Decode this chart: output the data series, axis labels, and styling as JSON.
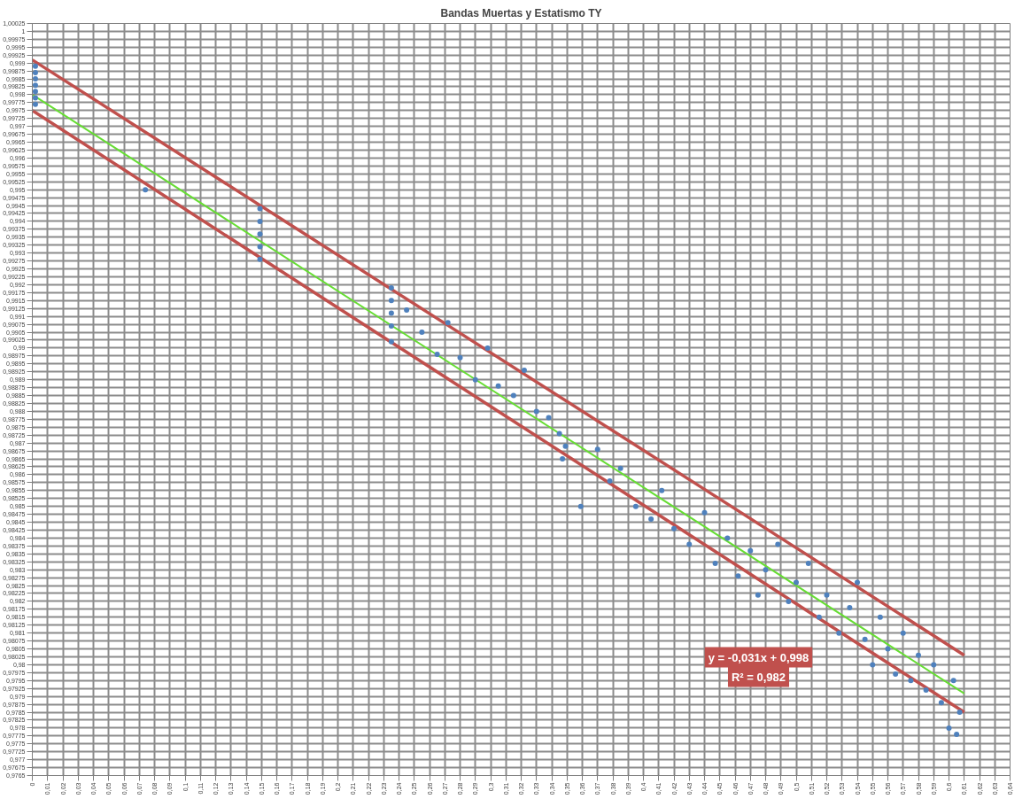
{
  "chart_data": {
    "type": "scatter",
    "title": "Bandas Muertas y Estatismo TY",
    "xlim": [
      0,
      0.64
    ],
    "ylim": [
      0.9765,
      1.00025
    ],
    "grid": true,
    "xticks": [
      0,
      {
        "value": 0.01,
        "label": "0,01"
      },
      {
        "value": 0.02,
        "label": "0,02"
      },
      {
        "value": 0.03,
        "label": "0,03"
      },
      {
        "value": 0.04,
        "label": "0,04"
      },
      {
        "value": 0.05,
        "label": "0,05"
      },
      {
        "value": 0.06,
        "label": "0,06"
      },
      {
        "value": 0.07,
        "label": "0,07"
      },
      {
        "value": 0.08,
        "label": "0,08"
      },
      {
        "value": 0.09,
        "label": "0,09"
      },
      {
        "value": 0.1,
        "label": "0,1"
      },
      {
        "value": 0.11,
        "label": "0,11"
      },
      {
        "value": 0.12,
        "label": "0,12"
      },
      {
        "value": 0.13,
        "label": "0,13"
      },
      {
        "value": 0.14,
        "label": "0,14"
      },
      {
        "value": 0.15,
        "label": "0,15"
      },
      {
        "value": 0.16,
        "label": "0,16"
      },
      {
        "value": 0.17,
        "label": "0,17"
      },
      {
        "value": 0.18,
        "label": "0,18"
      },
      {
        "value": 0.19,
        "label": "0,19"
      },
      {
        "value": 0.2,
        "label": "0,2"
      },
      {
        "value": 0.21,
        "label": "0,21"
      },
      {
        "value": 0.22,
        "label": "0,22"
      },
      {
        "value": 0.23,
        "label": "0,23"
      },
      {
        "value": 0.24,
        "label": "0,24"
      },
      {
        "value": 0.25,
        "label": "0,25"
      },
      {
        "value": 0.26,
        "label": "0,26"
      },
      {
        "value": 0.27,
        "label": "0,27"
      },
      {
        "value": 0.28,
        "label": "0,28"
      },
      {
        "value": 0.29,
        "label": "0,29"
      },
      {
        "value": 0.3,
        "label": "0,3"
      },
      {
        "value": 0.31,
        "label": "0,31"
      },
      {
        "value": 0.32,
        "label": "0,32"
      },
      {
        "value": 0.33,
        "label": "0,33"
      },
      {
        "value": 0.34,
        "label": "0,34"
      },
      {
        "value": 0.35,
        "label": "0,35"
      },
      {
        "value": 0.36,
        "label": "0,36"
      },
      {
        "value": 0.37,
        "label": "0,37"
      },
      {
        "value": 0.38,
        "label": "0,38"
      },
      {
        "value": 0.39,
        "label": "0,39"
      },
      {
        "value": 0.4,
        "label": "0,4"
      },
      {
        "value": 0.41,
        "label": "0,41"
      },
      {
        "value": 0.42,
        "label": "0,42"
      },
      {
        "value": 0.43,
        "label": "0,43"
      },
      {
        "value": 0.44,
        "label": "0,44"
      },
      {
        "value": 0.45,
        "label": "0,45"
      },
      {
        "value": 0.46,
        "label": "0,46"
      },
      {
        "value": 0.47,
        "label": "0,47"
      },
      {
        "value": 0.48,
        "label": "0,48"
      },
      {
        "value": 0.49,
        "label": "0,49"
      },
      {
        "value": 0.5,
        "label": "0,5"
      },
      {
        "value": 0.51,
        "label": "0,51"
      },
      {
        "value": 0.52,
        "label": "0,52"
      },
      {
        "value": 0.53,
        "label": "0,53"
      },
      {
        "value": 0.54,
        "label": "0,54"
      },
      {
        "value": 0.55,
        "label": "0,55"
      },
      {
        "value": 0.56,
        "label": "0,56"
      },
      {
        "value": 0.57,
        "label": "0,57"
      },
      {
        "value": 0.58,
        "label": "0,58"
      },
      {
        "value": 0.59,
        "label": "0,59"
      },
      {
        "value": 0.6,
        "label": "0,6"
      },
      {
        "value": 0.61,
        "label": "0,61"
      },
      {
        "value": 0.62,
        "label": "0,62"
      },
      {
        "value": 0.63,
        "label": "0,63"
      },
      {
        "value": 0.64,
        "label": "0,64"
      }
    ],
    "yticks": [
      {
        "value": 1.00025,
        "label": "1,00025"
      },
      1,
      {
        "value": 0.99975,
        "label": "0,99975"
      },
      {
        "value": 0.9995,
        "label": "0,9995"
      },
      {
        "value": 0.99925,
        "label": "0,99925"
      },
      {
        "value": 0.999,
        "label": "0,999"
      },
      {
        "value": 0.99875,
        "label": "0,99875"
      },
      {
        "value": 0.9985,
        "label": "0,9985"
      },
      {
        "value": 0.99825,
        "label": "0,99825"
      },
      {
        "value": 0.998,
        "label": "0,998"
      },
      {
        "value": 0.99775,
        "label": "0,99775"
      },
      {
        "value": 0.9975,
        "label": "0,9975"
      },
      {
        "value": 0.99725,
        "label": "0,99725"
      },
      {
        "value": 0.997,
        "label": "0,997"
      },
      {
        "value": 0.99675,
        "label": "0,99675"
      },
      {
        "value": 0.9965,
        "label": "0,9965"
      },
      {
        "value": 0.99625,
        "label": "0,99625"
      },
      {
        "value": 0.996,
        "label": "0,996"
      },
      {
        "value": 0.99575,
        "label": "0,99575"
      },
      {
        "value": 0.9955,
        "label": "0,9955"
      },
      {
        "value": 0.99525,
        "label": "0,99525"
      },
      {
        "value": 0.995,
        "label": "0,995"
      },
      {
        "value": 0.99475,
        "label": "0,99475"
      },
      {
        "value": 0.9945,
        "label": "0,9945"
      },
      {
        "value": 0.99425,
        "label": "0,99425"
      },
      {
        "value": 0.994,
        "label": "0,994"
      },
      {
        "value": 0.99375,
        "label": "0,99375"
      },
      {
        "value": 0.9935,
        "label": "0,9935"
      },
      {
        "value": 0.99325,
        "label": "0,99325"
      },
      {
        "value": 0.993,
        "label": "0,993"
      },
      {
        "value": 0.99275,
        "label": "0,99275"
      },
      {
        "value": 0.9925,
        "label": "0,9925"
      },
      {
        "value": 0.99225,
        "label": "0,99225"
      },
      {
        "value": 0.992,
        "label": "0,992"
      },
      {
        "value": 0.99175,
        "label": "0,99175"
      },
      {
        "value": 0.9915,
        "label": "0,9915"
      },
      {
        "value": 0.99125,
        "label": "0,99125"
      },
      {
        "value": 0.991,
        "label": "0,991"
      },
      {
        "value": 0.99075,
        "label": "0,99075"
      },
      {
        "value": 0.9905,
        "label": "0,9905"
      },
      {
        "value": 0.99025,
        "label": "0,99025"
      },
      {
        "value": 0.99,
        "label": "0,99"
      },
      {
        "value": 0.98975,
        "label": "0,98975"
      },
      {
        "value": 0.9895,
        "label": "0,9895"
      },
      {
        "value": 0.98925,
        "label": "0,98925"
      },
      {
        "value": 0.989,
        "label": "0,989"
      },
      {
        "value": 0.98875,
        "label": "0,98875"
      },
      {
        "value": 0.9885,
        "label": "0,9885"
      },
      {
        "value": 0.98825,
        "label": "0,98825"
      },
      {
        "value": 0.988,
        "label": "0,988"
      },
      {
        "value": 0.98775,
        "label": "0,98775"
      },
      {
        "value": 0.9875,
        "label": "0,9875"
      },
      {
        "value": 0.98725,
        "label": "0,98725"
      },
      {
        "value": 0.987,
        "label": "0,987"
      },
      {
        "value": 0.98675,
        "label": "0,98675"
      },
      {
        "value": 0.9865,
        "label": "0,9865"
      },
      {
        "value": 0.98625,
        "label": "0,98625"
      },
      {
        "value": 0.986,
        "label": "0,986"
      },
      {
        "value": 0.98575,
        "label": "0,98575"
      },
      {
        "value": 0.9855,
        "label": "0,9855"
      },
      {
        "value": 0.98525,
        "label": "0,98525"
      },
      {
        "value": 0.985,
        "label": "0,985"
      },
      {
        "value": 0.98475,
        "label": "0,98475"
      },
      {
        "value": 0.9845,
        "label": "0,9845"
      },
      {
        "value": 0.98425,
        "label": "0,98425"
      },
      {
        "value": 0.984,
        "label": "0,984"
      },
      {
        "value": 0.98375,
        "label": "0,98375"
      },
      {
        "value": 0.9835,
        "label": "0,9835"
      },
      {
        "value": 0.98325,
        "label": "0,98325"
      },
      {
        "value": 0.983,
        "label": "0,983"
      },
      {
        "value": 0.98275,
        "label": "0,98275"
      },
      {
        "value": 0.9825,
        "label": "0,9825"
      },
      {
        "value": 0.98225,
        "label": "0,98225"
      },
      {
        "value": 0.982,
        "label": "0,982"
      },
      {
        "value": 0.98175,
        "label": "0,98175"
      },
      {
        "value": 0.9815,
        "label": "0,9815"
      },
      {
        "value": 0.98125,
        "label": "0,98125"
      },
      {
        "value": 0.981,
        "label": "0,981"
      },
      {
        "value": 0.98075,
        "label": "0,98075"
      },
      {
        "value": 0.9805,
        "label": "0,9805"
      },
      {
        "value": 0.98025,
        "label": "0,98025"
      },
      {
        "value": 0.98,
        "label": "0,98"
      },
      {
        "value": 0.97975,
        "label": "0,97975"
      },
      {
        "value": 0.9795,
        "label": "0,9795"
      },
      {
        "value": 0.97925,
        "label": "0,97925"
      },
      {
        "value": 0.979,
        "label": "0,979"
      },
      {
        "value": 0.97875,
        "label": "0,97875"
      },
      {
        "value": 0.9785,
        "label": "0,9785"
      },
      {
        "value": 0.97825,
        "label": "0,97825"
      },
      {
        "value": 0.978,
        "label": "0,978"
      },
      {
        "value": 0.97775,
        "label": "0,97775"
      },
      {
        "value": 0.9775,
        "label": "0,9775"
      },
      {
        "value": 0.97725,
        "label": "0,97725"
      },
      {
        "value": 0.977,
        "label": "0,977"
      },
      {
        "value": 0.97675,
        "label": "0,97675"
      },
      {
        "value": 0.9765,
        "label": "0,9765"
      }
    ],
    "annotations": [
      "y = -0,031x + 0,998",
      "R² = 0,982"
    ],
    "series": [
      {
        "marker": "circle",
        "color": "#4f81bd",
        "x": [
          0.002,
          0.002,
          0.002,
          0.002,
          0.002,
          0.002,
          0.002,
          0.074,
          0.149,
          0.149,
          0.149,
          0.149,
          0.149,
          0.235,
          0.235,
          0.235,
          0.235,
          0.235,
          0.245,
          0.255,
          0.265,
          0.272,
          0.28,
          0.29,
          0.298,
          0.305,
          0.315,
          0.322,
          0.33,
          0.338,
          0.345,
          0.347,
          0.349,
          0.359,
          0.37,
          0.378,
          0.385,
          0.395,
          0.405,
          0.412,
          0.42,
          0.43,
          0.44,
          0.447,
          0.455,
          0.462,
          0.47,
          0.475,
          0.48,
          0.488,
          0.495,
          0.5,
          0.508,
          0.515,
          0.52,
          0.528,
          0.535,
          0.54,
          0.545,
          0.55,
          0.555,
          0.56,
          0.565,
          0.57,
          0.575,
          0.58,
          0.585,
          0.59,
          0.595,
          0.6,
          0.603,
          0.605,
          0.607
        ],
        "values": [
          0.9989,
          0.9987,
          0.9985,
          0.9983,
          0.9981,
          0.9979,
          0.9977,
          0.995,
          0.9944,
          0.994,
          0.9936,
          0.9932,
          0.9928,
          0.9919,
          0.9915,
          0.9911,
          0.9907,
          0.9902,
          0.9912,
          0.9905,
          0.9898,
          0.9908,
          0.9897,
          0.989,
          0.99,
          0.9888,
          0.9885,
          0.9893,
          0.988,
          0.9878,
          0.9873,
          0.9865,
          0.9869,
          0.985,
          0.9868,
          0.9858,
          0.9862,
          0.985,
          0.9846,
          0.9855,
          0.9843,
          0.9838,
          0.9848,
          0.9832,
          0.984,
          0.9828,
          0.9836,
          0.9822,
          0.983,
          0.9838,
          0.982,
          0.9826,
          0.9832,
          0.9815,
          0.9822,
          0.981,
          0.9818,
          0.9826,
          0.9808,
          0.98,
          0.9815,
          0.9805,
          0.9797,
          0.981,
          0.9795,
          0.9803,
          0.9792,
          0.98,
          0.9788,
          0.978,
          0.9795,
          0.9778,
          0.9785
        ]
      },
      {
        "type": "line",
        "color": "#66dd33",
        "line_style": "solid",
        "x": [
          0,
          0.61
        ],
        "values": [
          0.998,
          0.97909
        ]
      },
      {
        "type": "line",
        "color": "#c0504d",
        "line_style": "solid",
        "x": [
          0,
          0.61
        ],
        "values": [
          0.9991,
          0.9803
        ]
      },
      {
        "type": "line",
        "color": "#c0504d",
        "line_style": "solid",
        "x": [
          0,
          0.61
        ],
        "values": [
          0.9975,
          0.9785
        ]
      }
    ]
  }
}
